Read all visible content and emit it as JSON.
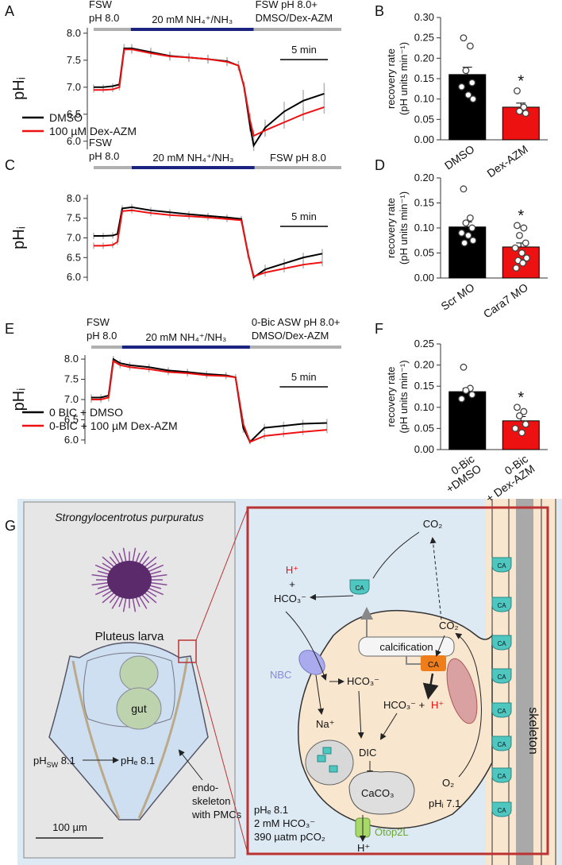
{
  "panel_labels": [
    "A",
    "B",
    "C",
    "D",
    "E",
    "F",
    "G"
  ],
  "chart_data": [
    {
      "type": "line",
      "ylabel": "pHᵢ",
      "xlim": [
        0,
        26
      ],
      "ylim": [
        5.85,
        8.1
      ],
      "yticks": [
        {
          "value": 6,
          "label": "6.0"
        },
        {
          "value": 6.5,
          "label": "6.5"
        },
        {
          "value": 7,
          "label": "7.0"
        },
        {
          "value": 7.5,
          "label": "7.5"
        },
        {
          "value": 8,
          "label": "8.0"
        }
      ],
      "x": [
        0,
        1,
        2,
        2.7,
        3.2,
        4,
        6,
        8,
        10,
        12,
        14,
        15.2,
        15.8,
        16.4,
        16.8,
        18,
        20,
        22,
        24.2
      ],
      "series": [
        {
          "name": "DMSO",
          "color": "#000000",
          "values": [
            7.0,
            7.0,
            7.02,
            7.05,
            7.72,
            7.72,
            7.65,
            7.58,
            7.55,
            7.52,
            7.48,
            7.4,
            7.0,
            6.3,
            5.92,
            6.25,
            6.55,
            6.75,
            6.88
          ],
          "errors": [
            0.05,
            0.05,
            0.05,
            0.06,
            0.08,
            0.08,
            0.08,
            0.08,
            0.08,
            0.08,
            0.08,
            0.09,
            0.1,
            0.12,
            0.1,
            0.15,
            0.18,
            0.2,
            0.2
          ]
        },
        {
          "name": "100 µM Dex-AZM",
          "color": "#ee1111",
          "values": [
            6.95,
            6.95,
            6.96,
            7.0,
            7.7,
            7.7,
            7.63,
            7.57,
            7.55,
            7.52,
            7.47,
            7.4,
            7.0,
            6.4,
            6.1,
            6.2,
            6.35,
            6.5,
            6.63
          ],
          "errors": [
            0.05,
            0.05,
            0.05,
            0.06,
            0.08,
            0.08,
            0.08,
            0.08,
            0.08,
            0.08,
            0.08,
            0.09,
            0.1,
            0.12,
            0.1,
            0.12,
            0.12,
            0.12,
            0.12
          ]
        }
      ],
      "legend": "lower left",
      "protocol": [
        {
          "label": "FSW\npH 8.0",
          "color": "#b0b0b0",
          "start": 0,
          "end": 3.9
        },
        {
          "label": "20 mM NH₄⁺/NH₃",
          "color": "#1a237e",
          "start": 3.9,
          "end": 16.8
        },
        {
          "label": "FSW pH 8.0+\nDMSO/Dex-AZM",
          "color": "#b0b0b0",
          "start": 16.8,
          "end": 26
        }
      ],
      "scale_bar": {
        "value": 5,
        "label": "5 min"
      }
    },
    {
      "type": "bar",
      "ylabel": [
        "recovery rate",
        "(pH units min⁻¹)"
      ],
      "ylim": [
        0,
        0.3
      ],
      "yticks": [
        {
          "value": 0,
          "label": "0.00"
        },
        {
          "value": 0.05,
          "label": "0.05"
        },
        {
          "value": 0.1,
          "label": "0.10"
        },
        {
          "value": 0.15,
          "label": "0.15"
        },
        {
          "value": 0.2,
          "label": "0.20"
        },
        {
          "value": 0.25,
          "label": "0.25"
        },
        {
          "value": 0.3,
          "label": "0.30"
        }
      ],
      "categories": [
        "DMSO",
        "Dex-AZM"
      ],
      "values": [
        0.16,
        0.08
      ],
      "errors": [
        0.018,
        0.01
      ],
      "colors": [
        "#000000",
        "#ee1111"
      ],
      "points": [
        [
          0.25,
          0.23,
          0.17,
          0.14,
          0.13,
          0.11,
          0.1
        ],
        [
          0.12,
          0.08,
          0.07,
          0.065
        ]
      ],
      "annotation": "*"
    },
    {
      "type": "line",
      "ylabel": "pHᵢ",
      "xlim": [
        0,
        26
      ],
      "ylim": [
        5.9,
        8.1
      ],
      "yticks": [
        {
          "value": 6,
          "label": "6.0"
        },
        {
          "value": 6.5,
          "label": "6.5"
        },
        {
          "value": 7,
          "label": "7.0"
        },
        {
          "value": 7.5,
          "label": "7.5"
        },
        {
          "value": 8,
          "label": "8.0"
        }
      ],
      "x": [
        0,
        1,
        2,
        2.5,
        3,
        4,
        6,
        8,
        10,
        12,
        14,
        15.5,
        16.2,
        16.8,
        18,
        20,
        22,
        24
      ],
      "series": [
        {
          "color": "#000000",
          "values": [
            7.05,
            7.05,
            7.06,
            7.1,
            7.75,
            7.78,
            7.7,
            7.65,
            7.6,
            7.56,
            7.52,
            7.48,
            6.6,
            6.0,
            6.2,
            6.35,
            6.5,
            6.6
          ],
          "errors": [
            0.08,
            0.08,
            0.08,
            0.08,
            0.08,
            0.08,
            0.08,
            0.08,
            0.08,
            0.08,
            0.08,
            0.08,
            0.12,
            0.08,
            0.12,
            0.12,
            0.12,
            0.12
          ]
        },
        {
          "color": "#ee1111",
          "values": [
            6.8,
            6.8,
            6.82,
            6.9,
            7.68,
            7.7,
            7.63,
            7.58,
            7.55,
            7.52,
            7.48,
            7.45,
            6.6,
            6.02,
            6.12,
            6.22,
            6.32,
            6.38
          ],
          "errors": [
            0.08,
            0.08,
            0.08,
            0.08,
            0.08,
            0.08,
            0.08,
            0.08,
            0.08,
            0.08,
            0.08,
            0.08,
            0.12,
            0.08,
            0.1,
            0.1,
            0.1,
            0.1
          ]
        }
      ],
      "protocol": [
        {
          "label": "FSW\npH 8.0",
          "color": "#b0b0b0",
          "start": 0,
          "end": 4
        },
        {
          "label": "20 mM NH₄⁺/NH₃",
          "color": "#1a237e",
          "start": 4,
          "end": 16.9
        },
        {
          "label": "FSW pH 8.0",
          "color": "#b0b0b0",
          "start": 16.9,
          "end": 26
        }
      ],
      "scale_bar": {
        "value": 5,
        "label": "5 min"
      }
    },
    {
      "type": "bar",
      "ylabel": [
        "recovery rate",
        "(pH units min⁻¹)"
      ],
      "ylim": [
        0,
        0.2
      ],
      "yticks": [
        {
          "value": 0,
          "label": "0.00"
        },
        {
          "value": 0.05,
          "label": "0.05"
        },
        {
          "value": 0.1,
          "label": "0.10"
        },
        {
          "value": 0.15,
          "label": "0.15"
        },
        {
          "value": 0.2,
          "label": "0.20"
        }
      ],
      "categories": [
        "Scr MO",
        "Cara7 MO"
      ],
      "values": [
        0.102,
        0.062
      ],
      "errors": [
        0.01,
        0.008
      ],
      "colors": [
        "#000000",
        "#ee1111"
      ],
      "points": [
        [
          0.178,
          0.12,
          0.11,
          0.1,
          0.09,
          0.085,
          0.075,
          0.07
        ],
        [
          0.105,
          0.1,
          0.085,
          0.07,
          0.06,
          0.05,
          0.04,
          0.035,
          0.03,
          0.02
        ]
      ],
      "annotation": "*"
    },
    {
      "type": "line",
      "ylabel": "pHᵢ",
      "xlim": [
        0,
        26
      ],
      "ylim": [
        5.9,
        8.1
      ],
      "yticks": [
        {
          "value": 6,
          "label": "6.0"
        },
        {
          "value": 6.5,
          "label": "6.5"
        },
        {
          "value": 7,
          "label": "7.0"
        },
        {
          "value": 7.5,
          "label": "7.5"
        },
        {
          "value": 8,
          "label": "8.0"
        }
      ],
      "x": [
        0,
        1,
        1.8,
        2.3,
        3,
        4,
        6,
        8,
        10,
        12,
        14,
        15,
        15.8,
        16.5,
        18,
        20,
        22,
        24.5
      ],
      "series": [
        {
          "name": "0 BIC + DMSO",
          "color": "#000000",
          "values": [
            7.05,
            7.05,
            7.1,
            8.0,
            7.9,
            7.85,
            7.8,
            7.72,
            7.68,
            7.63,
            7.6,
            7.55,
            6.3,
            5.95,
            6.3,
            6.35,
            6.4,
            6.42
          ],
          "errors": [
            0.08,
            0.08,
            0.1,
            0.08,
            0.08,
            0.08,
            0.08,
            0.08,
            0.08,
            0.08,
            0.08,
            0.08,
            0.12,
            0.06,
            0.1,
            0.1,
            0.1,
            0.1
          ]
        },
        {
          "name": "0-BIC + 100 µM Dex-AZM",
          "color": "#ee1111",
          "values": [
            7.0,
            7.0,
            7.05,
            7.95,
            7.85,
            7.8,
            7.75,
            7.68,
            7.65,
            7.6,
            7.58,
            7.55,
            6.4,
            5.95,
            6.1,
            6.15,
            6.2,
            6.25
          ],
          "errors": [
            0.08,
            0.08,
            0.1,
            0.08,
            0.08,
            0.08,
            0.08,
            0.08,
            0.08,
            0.08,
            0.08,
            0.08,
            0.12,
            0.06,
            0.08,
            0.08,
            0.08,
            0.08
          ]
        }
      ],
      "legend": "lower left",
      "protocol": [
        {
          "label": "FSW\npH 8.0",
          "color": "#b0b0b0",
          "start": 0,
          "end": 3.2
        },
        {
          "label": "20 mM NH₄⁺/NH₃",
          "color": "#1a237e",
          "start": 3.2,
          "end": 16.5
        },
        {
          "label": "0-Bic ASW pH 8.0+\nDMSO/Dex-AZM",
          "color": "#b0b0b0",
          "start": 16.5,
          "end": 26
        }
      ],
      "scale_bar": {
        "value": 5,
        "label": "5 min"
      }
    },
    {
      "type": "bar",
      "ylabel": [
        "recovery rate",
        "(pH units min⁻¹)"
      ],
      "ylim": [
        0,
        0.25
      ],
      "yticks": [
        {
          "value": 0,
          "label": "0.00"
        },
        {
          "value": 0.05,
          "label": "0.05"
        },
        {
          "value": 0.1,
          "label": "0.10"
        },
        {
          "value": 0.15,
          "label": "0.15"
        },
        {
          "value": 0.2,
          "label": "0.20"
        },
        {
          "value": 0.25,
          "label": "0.25"
        }
      ],
      "categories": [
        "0-Bic\n+DMSO",
        "0-Bic\n+ Dex-AZM"
      ],
      "values": [
        0.137,
        0.068
      ],
      "errors": [
        0.008,
        0.01
      ],
      "colors": [
        "#000000",
        "#ee1111"
      ],
      "points": [
        [
          0.195,
          0.145,
          0.14,
          0.13,
          0.12
        ],
        [
          0.1,
          0.09,
          0.08,
          0.06,
          0.05,
          0.04
        ]
      ],
      "annotation": "*"
    }
  ],
  "panel_g": {
    "species": "Strongylocentrotus purpuratus",
    "larva": "Pluteus larva",
    "gut": "gut",
    "ph_sw": {
      "base": "pH",
      "sub": "SW",
      "rest": " 8.1"
    },
    "ph_e_larva": "pHₑ 8.1",
    "endoskeleton": "endo-\nskeleton\nwith PMCs",
    "scale": "100 µm",
    "h_plus_out": "H⁺",
    "plus": "+",
    "hco3_out": "HCO₃⁻",
    "co2_out": "CO₂",
    "ca": "CA",
    "calcification": "calcification",
    "nbc": "NBC",
    "hco3_in": "HCO₃⁻",
    "na": "Na⁺",
    "hco3_h": "HCO₃⁻ +",
    "h_plus_in": "H⁺",
    "co2_in": "CO₂",
    "dic": "DIC",
    "caco3": "CaCO₃",
    "ph_i": "pHᵢ 7.1",
    "o2": "O₂",
    "otop": "Otop2L",
    "h_plus_efflux": "H⁺",
    "conditions": "pHₑ 8.1\n2 mM HCO₃⁻\n390 µatm pCO₂",
    "skeleton": "skeleton"
  }
}
